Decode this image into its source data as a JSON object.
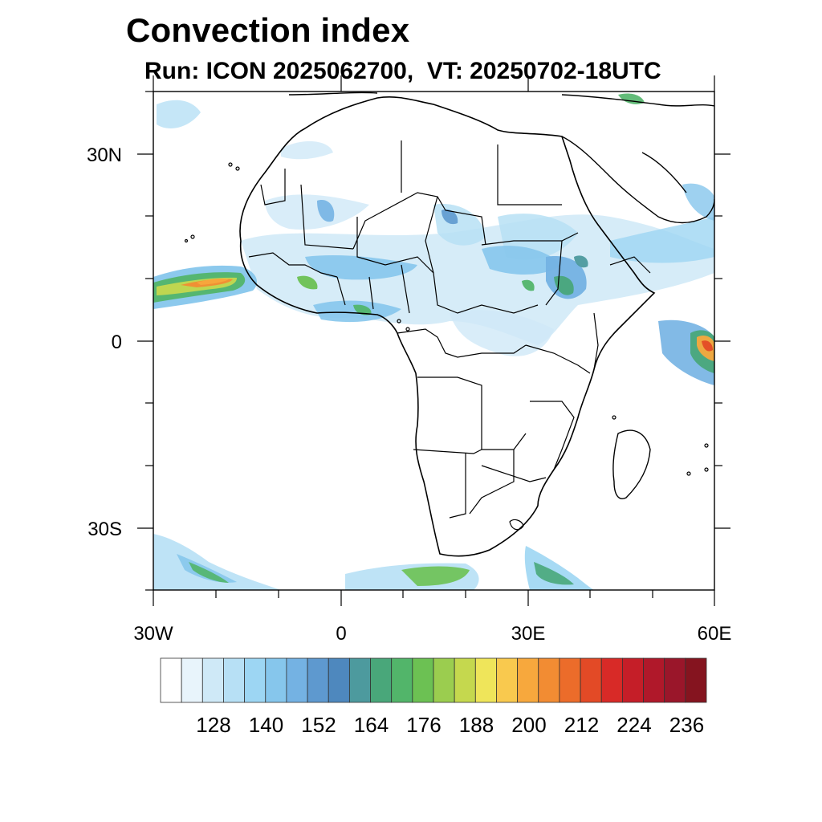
{
  "title": "Convection index",
  "subtitle": "Run: ICON 2025062700,  VT: 20250702-18UTC",
  "map": {
    "lat_labels": [
      "30N",
      "0",
      "30S"
    ],
    "lon_labels": [
      "30W",
      "0",
      "30E",
      "60E"
    ],
    "extent": {
      "lon_min": -30,
      "lon_max": 60,
      "lat_min": -40,
      "lat_max": 40
    }
  },
  "colorbar": {
    "colors": [
      "#ffffff",
      "#e8f4fb",
      "#cfe9f7",
      "#b7e0f5",
      "#9dd6f3",
      "#86c6ec",
      "#74b2e3",
      "#5e99cf",
      "#4e88be",
      "#4d9a9e",
      "#49a77a",
      "#52b56a",
      "#6cc153",
      "#9bcd4f",
      "#c5d84e",
      "#efe55a",
      "#f9c94e",
      "#f7a83d",
      "#f28c33",
      "#ec6c2a",
      "#e34a26",
      "#d82a27",
      "#c51e28",
      "#b0182a",
      "#9a162a",
      "#85141f"
    ],
    "tick_labels": [
      "128",
      "140",
      "152",
      "164",
      "176",
      "188",
      "200",
      "212",
      "224",
      "236"
    ]
  }
}
